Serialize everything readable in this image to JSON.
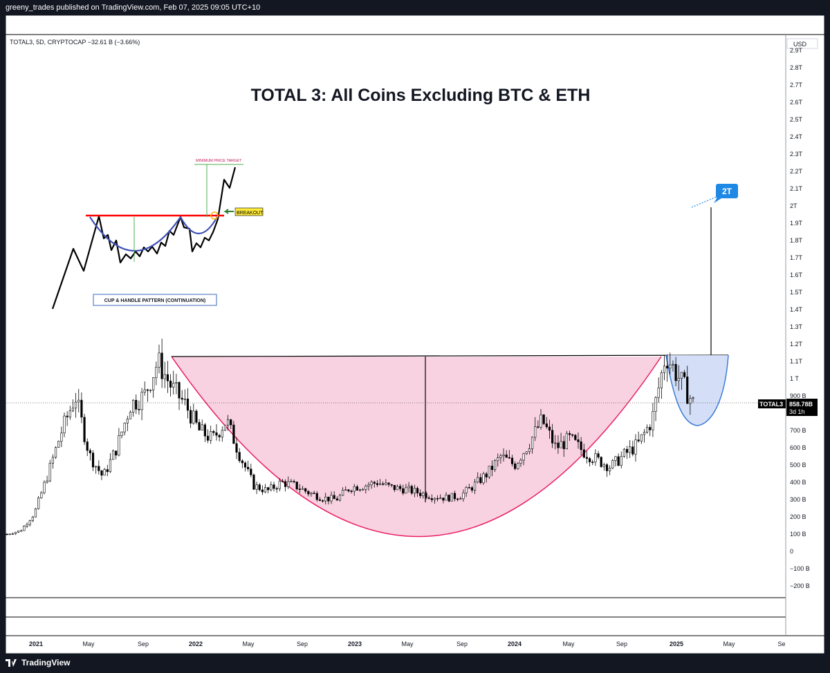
{
  "header": {
    "publish_line": "greeny_trades published on TradingView.com, Feb 07, 2025 09:05 UTC+10"
  },
  "footer": {
    "brand": "TradingView"
  },
  "symbol_line": "TOTAL3, 5D, CRYPTOCAP  −32.61 B (−3.66%)",
  "currency": "USD",
  "title": "TOTAL 3: All Coins Excluding BTC & ETH",
  "price_tag": {
    "symbol": "TOTAL3",
    "value": "858.78B",
    "countdown": "3d 1h"
  },
  "target_label": "2T",
  "inset": {
    "min_target_label": "MINIMUM PRICE TARGET",
    "breakout_label": "BREAKOUT",
    "pattern_label": "CUP & HANDLE PATTERN (CONTINUATION)"
  },
  "colors": {
    "cup_fill": "#f8d2e0",
    "cup_stroke": "#e91e63",
    "handle_fill": "#cfdcf6",
    "handle_stroke": "#3a7bd5",
    "target_box": "#1e88e5",
    "rim_line": "#000000",
    "inset_resistance": "#ff0000",
    "inset_cup": "#3f51b5",
    "breakout_box": "#ffeb3b"
  },
  "chart_data": {
    "type": "line",
    "title": "TOTAL 3: All Coins Excluding BTC & ETH",
    "series": [
      {
        "name": "TOTAL3",
        "x": [
          "2020-11",
          "2021-01",
          "2021-02",
          "2021-03",
          "2021-04",
          "2021-05",
          "2021-06",
          "2021-07",
          "2021-08",
          "2021-09",
          "2021-10",
          "2021-11",
          "2021-12",
          "2022-01",
          "2022-02",
          "2022-03",
          "2022-04",
          "2022-05",
          "2022-06",
          "2022-07",
          "2022-08",
          "2022-09",
          "2022-10",
          "2022-11",
          "2022-12",
          "2023-01",
          "2023-02",
          "2023-03",
          "2023-04",
          "2023-05",
          "2023-06",
          "2023-07",
          "2023-08",
          "2023-09",
          "2023-10",
          "2023-11",
          "2023-12",
          "2024-01",
          "2024-02",
          "2024-03",
          "2024-04",
          "2024-05",
          "2024-06",
          "2024-07",
          "2024-08",
          "2024-09",
          "2024-10",
          "2024-11",
          "2024-12",
          "2025-01",
          "2025-02"
        ],
        "values": [
          100,
          120,
          220,
          450,
          700,
          900,
          560,
          430,
          600,
          850,
          900,
          1100,
          950,
          850,
          700,
          650,
          760,
          550,
          380,
          350,
          400,
          380,
          340,
          310,
          300,
          370,
          380,
          400,
          370,
          360,
          340,
          320,
          310,
          320,
          380,
          450,
          550,
          500,
          620,
          760,
          600,
          650,
          580,
          530,
          490,
          560,
          620,
          760,
          1140,
          1000,
          858.78
        ]
      }
    ],
    "y_ticks": [
      "−200 B",
      "−100 B",
      "0",
      "100 B",
      "200 B",
      "300 B",
      "400 B",
      "500 B",
      "600 B",
      "700 B",
      "800 B",
      "900 B",
      "1 T",
      "1.1T",
      "1.2T",
      "1.3T",
      "1.4T",
      "1.5T",
      "1.6T",
      "1.7T",
      "1.8T",
      "1.9T",
      "2T",
      "2.1T",
      "2.2T",
      "2.3T",
      "2.4T",
      "2.5T",
      "2.6T",
      "2.7T",
      "2.8T",
      "2.9T"
    ],
    "x_ticks": [
      "2021",
      "May",
      "Sep",
      "2022",
      "May",
      "Sep",
      "2023",
      "May",
      "Sep",
      "2024",
      "May",
      "Sep",
      "2025",
      "May",
      "Se"
    ],
    "ylim": [
      -200,
      2900
    ],
    "ylabel": "USD"
  }
}
